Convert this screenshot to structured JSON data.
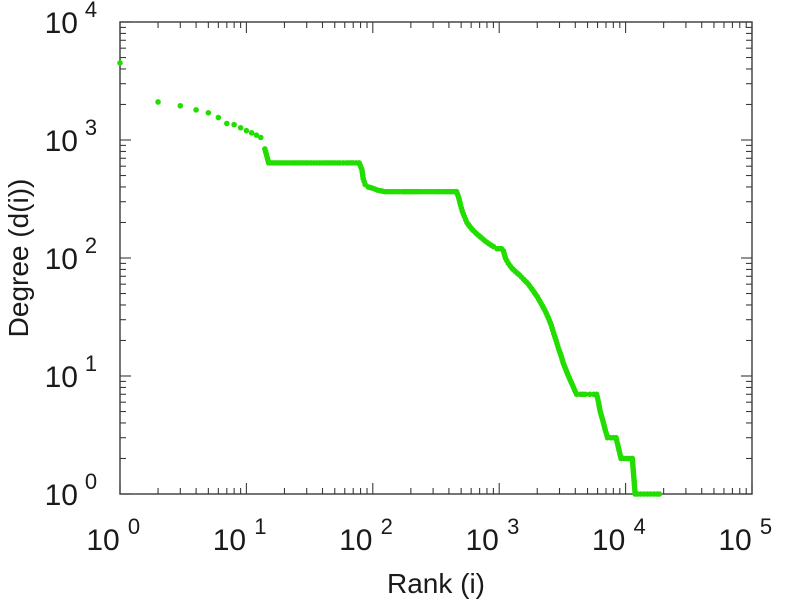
{
  "chart_data": {
    "type": "scatter",
    "xlabel": "Rank (i)",
    "ylabel": "Degree (d(i))",
    "xscale": "log",
    "yscale": "log",
    "xlim": [
      1,
      100000
    ],
    "ylim": [
      1,
      10000
    ],
    "marker_color": "#22dd00",
    "grid": false,
    "legend": "none",
    "x_ticks": [
      {
        "base": "10",
        "exp": "0"
      },
      {
        "base": "10",
        "exp": "1"
      },
      {
        "base": "10",
        "exp": "2"
      },
      {
        "base": "10",
        "exp": "3"
      },
      {
        "base": "10",
        "exp": "4"
      },
      {
        "base": "10",
        "exp": "5"
      }
    ],
    "y_ticks": [
      {
        "base": "10",
        "exp": "0"
      },
      {
        "base": "10",
        "exp": "1"
      },
      {
        "base": "10",
        "exp": "2"
      },
      {
        "base": "10",
        "exp": "3"
      },
      {
        "base": "10",
        "exp": "4"
      }
    ],
    "points": [
      [
        1,
        4500
      ],
      [
        2,
        2100
      ],
      [
        3,
        1950
      ],
      [
        4,
        1800
      ],
      [
        5,
        1700
      ],
      [
        6,
        1550
      ],
      [
        7,
        1380
      ],
      [
        8,
        1350
      ],
      [
        9,
        1270
      ],
      [
        10,
        1200
      ],
      [
        11,
        1150
      ],
      [
        12,
        1100
      ],
      [
        13,
        1050
      ],
      [
        14,
        840
      ],
      [
        15,
        640
      ],
      [
        17,
        640
      ],
      [
        20,
        640
      ],
      [
        23,
        640
      ],
      [
        27,
        640
      ],
      [
        31,
        640
      ],
      [
        36,
        640
      ],
      [
        42,
        640
      ],
      [
        48,
        640
      ],
      [
        55,
        640
      ],
      [
        62,
        640
      ],
      [
        70,
        640
      ],
      [
        78,
        640
      ],
      [
        82,
        560
      ],
      [
        84,
        470
      ],
      [
        87,
        420
      ],
      [
        92,
        400
      ],
      [
        100,
        390
      ],
      [
        110,
        375
      ],
      [
        125,
        365
      ],
      [
        145,
        365
      ],
      [
        170,
        365
      ],
      [
        200,
        365
      ],
      [
        235,
        365
      ],
      [
        275,
        365
      ],
      [
        320,
        365
      ],
      [
        370,
        365
      ],
      [
        420,
        365
      ],
      [
        460,
        365
      ],
      [
        480,
        320
      ],
      [
        495,
        280
      ],
      [
        510,
        250
      ],
      [
        530,
        225
      ],
      [
        555,
        200
      ],
      [
        585,
        185
      ],
      [
        620,
        172
      ],
      [
        665,
        160
      ],
      [
        715,
        150
      ],
      [
        770,
        140
      ],
      [
        830,
        132
      ],
      [
        900,
        125
      ],
      [
        960,
        120
      ],
      [
        1000,
        120
      ],
      [
        1040,
        120
      ],
      [
        1080,
        115
      ],
      [
        1120,
        100
      ],
      [
        1180,
        90
      ],
      [
        1260,
        82
      ],
      [
        1340,
        77
      ],
      [
        1440,
        72
      ],
      [
        1560,
        66
      ],
      [
        1700,
        60
      ],
      [
        1850,
        53
      ],
      [
        2000,
        47
      ],
      [
        2150,
        41
      ],
      [
        2300,
        36
      ],
      [
        2450,
        31
      ],
      [
        2580,
        27
      ],
      [
        2700,
        23
      ],
      [
        2820,
        20
      ],
      [
        2950,
        17
      ],
      [
        3080,
        15
      ],
      [
        3200,
        13
      ],
      [
        3350,
        11.5
      ],
      [
        3500,
        10.2
      ],
      [
        3650,
        9.2
      ],
      [
        3800,
        8.4
      ],
      [
        3950,
        7.6
      ],
      [
        4100,
        7
      ],
      [
        4400,
        7
      ],
      [
        4800,
        7
      ],
      [
        5200,
        7
      ],
      [
        5600,
        7
      ],
      [
        5900,
        7
      ],
      [
        6100,
        6
      ],
      [
        6300,
        5
      ],
      [
        6600,
        4.2
      ],
      [
        6900,
        3.5
      ],
      [
        7200,
        3
      ],
      [
        7600,
        3
      ],
      [
        8000,
        3
      ],
      [
        8400,
        3
      ],
      [
        9200,
        2
      ],
      [
        9700,
        2
      ],
      [
        10200,
        2
      ],
      [
        10700,
        2
      ],
      [
        11300,
        2
      ],
      [
        11900,
        1
      ],
      [
        12500,
        1
      ],
      [
        13200,
        1
      ],
      [
        14000,
        1
      ],
      [
        14900,
        1
      ],
      [
        15800,
        1
      ],
      [
        16800,
        1
      ],
      [
        17800,
        1
      ],
      [
        18500,
        1
      ]
    ]
  }
}
